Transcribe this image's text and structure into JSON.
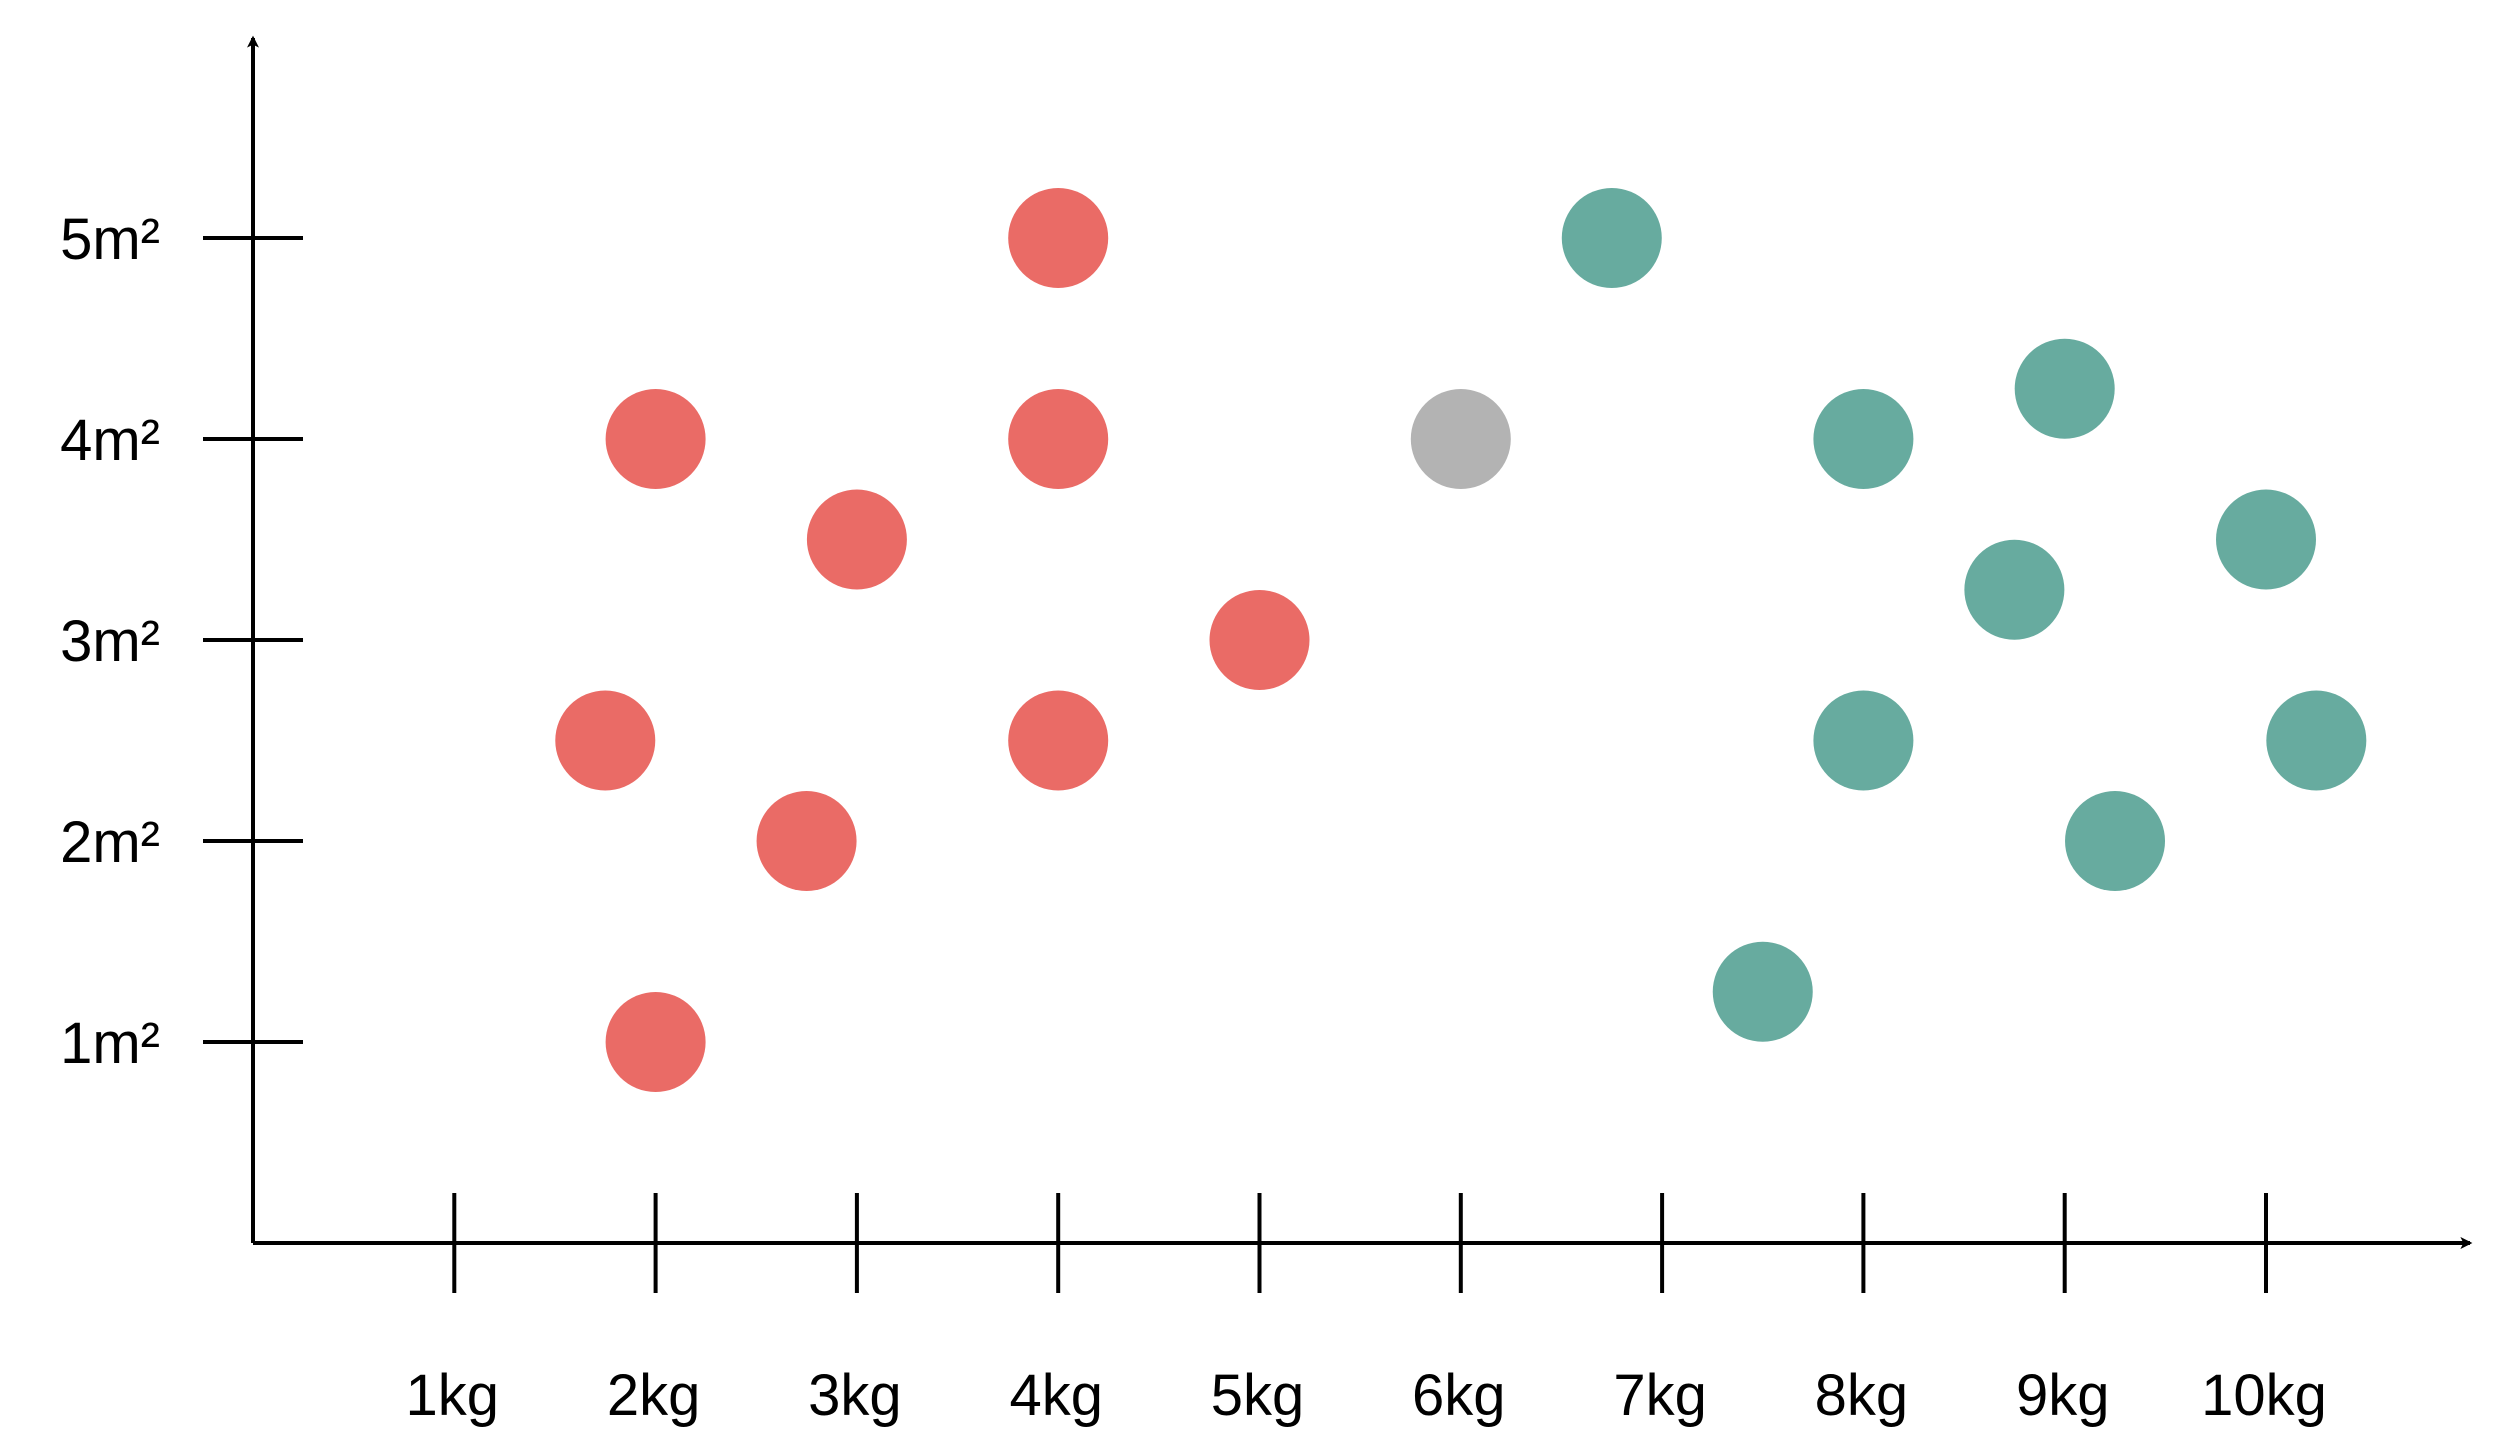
{
  "chart_data": {
    "type": "scatter",
    "title": "",
    "xlabel": "",
    "ylabel": "",
    "x_tick_labels": [
      "1kg",
      "2kg",
      "3kg",
      "4kg",
      "5kg",
      "6kg",
      "7kg",
      "8kg",
      "9kg",
      "10kg"
    ],
    "y_tick_labels": [
      "1m²",
      "2m²",
      "3m²",
      "4m²",
      "5m²"
    ],
    "x_ticks": [
      1,
      2,
      3,
      4,
      5,
      6,
      7,
      8,
      9,
      10
    ],
    "y_ticks": [
      1,
      2,
      3,
      4,
      5
    ],
    "xlim": [
      0,
      11
    ],
    "ylim": [
      0,
      6
    ],
    "grid": false,
    "legend": "none",
    "series": [
      {
        "color": "#EA6B66",
        "points": [
          {
            "x": 2,
            "y": 4
          },
          {
            "x": 1.75,
            "y": 2.5
          },
          {
            "x": 2,
            "y": 1
          },
          {
            "x": 3,
            "y": 3.5
          },
          {
            "x": 2.75,
            "y": 2
          },
          {
            "x": 4,
            "y": 5
          },
          {
            "x": 4,
            "y": 4
          },
          {
            "x": 4,
            "y": 2.5
          },
          {
            "x": 5,
            "y": 3
          }
        ]
      },
      {
        "color": "#B3B3B3",
        "points": [
          {
            "x": 6,
            "y": 4
          }
        ]
      },
      {
        "color": "#67AB9F",
        "points": [
          {
            "x": 6.75,
            "y": 5
          },
          {
            "x": 8,
            "y": 4
          },
          {
            "x": 9,
            "y": 4.25
          },
          {
            "x": 8.75,
            "y": 3.25
          },
          {
            "x": 10,
            "y": 3.5
          },
          {
            "x": 8,
            "y": 2.5
          },
          {
            "x": 10.25,
            "y": 2.5
          },
          {
            "x": 9.25,
            "y": 2
          },
          {
            "x": 7.5,
            "y": 1.25
          }
        ]
      }
    ]
  }
}
